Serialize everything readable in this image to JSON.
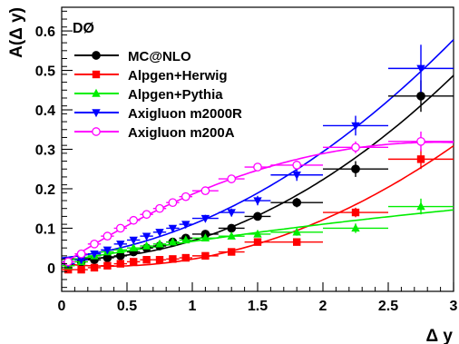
{
  "chart_data": {
    "type": "scatter",
    "title": "",
    "xlabel": "Δ y",
    "ylabel": "A(Δ y)",
    "annotation": "DØ",
    "xlim": [
      0,
      3
    ],
    "ylim": [
      -0.06,
      0.66
    ],
    "x_ticks": [
      "0",
      "0.5",
      "1",
      "1.5",
      "2",
      "2.5",
      "3"
    ],
    "y_ticks": [
      "0",
      "0.1",
      "0.2",
      "0.3",
      "0.4",
      "0.5",
      "0.6"
    ],
    "legend_position": "top-left",
    "series": [
      {
        "name": "MC@NLO",
        "color": "#000000",
        "marker": "circle-filled",
        "x": [
          0.05,
          0.15,
          0.25,
          0.35,
          0.45,
          0.55,
          0.65,
          0.75,
          0.85,
          0.95,
          1.1,
          1.3,
          1.5,
          1.8,
          2.25,
          2.75
        ],
        "y": [
          0.01,
          0.015,
          0.02,
          0.025,
          0.03,
          0.04,
          0.05,
          0.055,
          0.065,
          0.075,
          0.085,
          0.1,
          0.13,
          0.165,
          0.25,
          0.435
        ],
        "yerr": [
          0.006,
          0.006,
          0.006,
          0.006,
          0.006,
          0.006,
          0.007,
          0.007,
          0.007,
          0.008,
          0.008,
          0.009,
          0.01,
          0.012,
          0.02,
          0.04
        ],
        "xerr": [
          0.05,
          0.05,
          0.05,
          0.05,
          0.05,
          0.05,
          0.05,
          0.05,
          0.05,
          0.05,
          0.1,
          0.1,
          0.1,
          0.2,
          0.25,
          0.25
        ]
      },
      {
        "name": "Alpgen+Herwig",
        "color": "#ff0000",
        "marker": "square-filled",
        "x": [
          0.05,
          0.15,
          0.25,
          0.35,
          0.45,
          0.55,
          0.65,
          0.75,
          0.85,
          0.95,
          1.1,
          1.3,
          1.5,
          1.8,
          2.25,
          2.75
        ],
        "y": [
          -0.005,
          -0.005,
          0.0,
          0.005,
          0.01,
          0.015,
          0.02,
          0.02,
          0.022,
          0.025,
          0.03,
          0.04,
          0.065,
          0.065,
          0.14,
          0.275
        ],
        "yerr": [
          0.005,
          0.005,
          0.005,
          0.005,
          0.005,
          0.005,
          0.005,
          0.005,
          0.005,
          0.006,
          0.006,
          0.007,
          0.008,
          0.009,
          0.012,
          0.025
        ],
        "xerr": [
          0.05,
          0.05,
          0.05,
          0.05,
          0.05,
          0.05,
          0.05,
          0.05,
          0.05,
          0.05,
          0.1,
          0.1,
          0.1,
          0.2,
          0.25,
          0.25
        ]
      },
      {
        "name": "Alpgen+Pythia",
        "color": "#00ee00",
        "marker": "triangle-up-filled",
        "x": [
          0.05,
          0.15,
          0.25,
          0.35,
          0.45,
          0.55,
          0.65,
          0.75,
          0.85,
          0.95,
          1.1,
          1.3,
          1.5,
          1.8,
          2.25,
          2.75
        ],
        "y": [
          0.005,
          0.015,
          0.03,
          0.04,
          0.045,
          0.05,
          0.055,
          0.06,
          0.065,
          0.07,
          0.075,
          0.08,
          0.085,
          0.09,
          0.1,
          0.155
        ],
        "yerr": [
          0.005,
          0.005,
          0.005,
          0.005,
          0.005,
          0.005,
          0.005,
          0.005,
          0.006,
          0.006,
          0.006,
          0.007,
          0.008,
          0.009,
          0.012,
          0.02
        ],
        "xerr": [
          0.05,
          0.05,
          0.05,
          0.05,
          0.05,
          0.05,
          0.05,
          0.05,
          0.05,
          0.05,
          0.1,
          0.1,
          0.1,
          0.2,
          0.25,
          0.25
        ]
      },
      {
        "name": "Axigluon m2000R",
        "color": "#0000ff",
        "marker": "triangle-down-filled",
        "x": [
          0.05,
          0.15,
          0.25,
          0.35,
          0.45,
          0.55,
          0.65,
          0.75,
          0.85,
          0.95,
          1.1,
          1.3,
          1.5,
          1.8,
          2.25,
          2.75
        ],
        "y": [
          0.01,
          0.02,
          0.035,
          0.045,
          0.06,
          0.07,
          0.08,
          0.09,
          0.1,
          0.11,
          0.125,
          0.14,
          0.17,
          0.235,
          0.36,
          0.505
        ],
        "yerr": [
          0.006,
          0.006,
          0.006,
          0.006,
          0.006,
          0.007,
          0.007,
          0.007,
          0.008,
          0.008,
          0.009,
          0.01,
          0.012,
          0.015,
          0.025,
          0.06
        ],
        "xerr": [
          0.05,
          0.05,
          0.05,
          0.05,
          0.05,
          0.05,
          0.05,
          0.05,
          0.05,
          0.05,
          0.1,
          0.1,
          0.1,
          0.2,
          0.25,
          0.25
        ]
      },
      {
        "name": "Axigluon m200A",
        "color": "#ff00ff",
        "marker": "circle-open",
        "x": [
          0.05,
          0.15,
          0.25,
          0.35,
          0.45,
          0.55,
          0.65,
          0.75,
          0.85,
          0.95,
          1.1,
          1.3,
          1.5,
          1.8,
          2.25,
          2.75
        ],
        "y": [
          0.015,
          0.035,
          0.06,
          0.08,
          0.1,
          0.12,
          0.135,
          0.15,
          0.165,
          0.18,
          0.195,
          0.225,
          0.255,
          0.26,
          0.305,
          0.32
        ],
        "yerr": [
          0.005,
          0.005,
          0.005,
          0.005,
          0.005,
          0.006,
          0.006,
          0.006,
          0.006,
          0.007,
          0.007,
          0.008,
          0.009,
          0.011,
          0.015,
          0.025
        ],
        "xerr": [
          0.05,
          0.05,
          0.05,
          0.05,
          0.05,
          0.05,
          0.05,
          0.05,
          0.05,
          0.05,
          0.1,
          0.1,
          0.1,
          0.2,
          0.25,
          0.25
        ]
      }
    ]
  }
}
